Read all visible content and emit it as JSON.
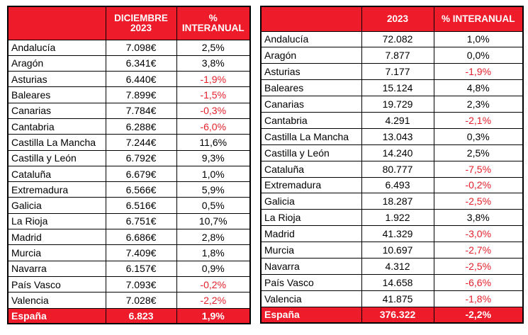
{
  "left_table": {
    "headers": [
      "",
      "DICIEMBRE\n2023",
      "%\nINTERANUAL"
    ],
    "header_value_lines": [
      "DICIEMBRE",
      "2023"
    ],
    "header_pct_lines": [
      "%",
      "INTERANUAL"
    ],
    "rows": [
      {
        "name": "Andalucía",
        "value": "7.098€",
        "pct": "2,5%",
        "neg": false
      },
      {
        "name": "Aragón",
        "value": "6.341€",
        "pct": "3,8%",
        "neg": false
      },
      {
        "name": "Asturias",
        "value": "6.440€",
        "pct": "-1,9%",
        "neg": true
      },
      {
        "name": "Baleares",
        "value": "7.899€",
        "pct": "-1,5%",
        "neg": true
      },
      {
        "name": "Canarias",
        "value": "7.784€",
        "pct": "-0,3%",
        "neg": true
      },
      {
        "name": "Cantabria",
        "value": "6.288€",
        "pct": "-6,0%",
        "neg": true
      },
      {
        "name": "Castilla La Mancha",
        "value": "7.244€",
        "pct": "11,6%",
        "neg": false
      },
      {
        "name": "Castilla y León",
        "value": "6.792€",
        "pct": "9,3%",
        "neg": false
      },
      {
        "name": "Cataluña",
        "value": "6.679€",
        "pct": "1,0%",
        "neg": false
      },
      {
        "name": "Extremadura",
        "value": "6.566€",
        "pct": "5,9%",
        "neg": false
      },
      {
        "name": "Galicia",
        "value": "6.516€",
        "pct": "0,5%",
        "neg": false
      },
      {
        "name": "La Rioja",
        "value": "6.751€",
        "pct": "10,7%",
        "neg": false
      },
      {
        "name": "Madrid",
        "value": "6.686€",
        "pct": "2,8%",
        "neg": false
      },
      {
        "name": "Murcia",
        "value": "7.409€",
        "pct": "1,8%",
        "neg": false
      },
      {
        "name": "Navarra",
        "value": "6.157€",
        "pct": "0,9%",
        "neg": false
      },
      {
        "name": "País Vasco",
        "value": "7.093€",
        "pct": "-0,2%",
        "neg": true
      },
      {
        "name": "Valencia",
        "value": "7.028€",
        "pct": "-2,2%",
        "neg": true
      }
    ],
    "total": {
      "name": "España",
      "value": "6.823",
      "pct": "1,9%"
    }
  },
  "right_table": {
    "header_value": "2023",
    "header_pct": "% INTERANUAL",
    "rows": [
      {
        "name": "Andalucía",
        "value": "72.082",
        "pct": "1,0%",
        "neg": false
      },
      {
        "name": "Aragón",
        "value": "7.877",
        "pct": "0,0%",
        "neg": false
      },
      {
        "name": "Asturias",
        "value": "7.177",
        "pct": "-1,9%",
        "neg": true
      },
      {
        "name": "Baleares",
        "value": "15.124",
        "pct": "4,8%",
        "neg": false
      },
      {
        "name": "Canarias",
        "value": "19.729",
        "pct": "2,3%",
        "neg": false
      },
      {
        "name": "Cantabria",
        "value": "4.291",
        "pct": "-2,1%",
        "neg": true
      },
      {
        "name": "Castilla La Mancha",
        "value": "13.043",
        "pct": "0,3%",
        "neg": false
      },
      {
        "name": "Castilla y León",
        "value": "14.240",
        "pct": "2,5%",
        "neg": false
      },
      {
        "name": "Cataluña",
        "value": "80.777",
        "pct": "-7,5%",
        "neg": true
      },
      {
        "name": "Extremadura",
        "value": "6.493",
        "pct": "-0,2%",
        "neg": true
      },
      {
        "name": "Galicia",
        "value": "18.287",
        "pct": "-2,5%",
        "neg": true
      },
      {
        "name": "La Rioja",
        "value": "1.922",
        "pct": "3,8%",
        "neg": false
      },
      {
        "name": "Madrid",
        "value": "41.329",
        "pct": "-3,0%",
        "neg": true
      },
      {
        "name": "Murcia",
        "value": "10.697",
        "pct": "-2,7%",
        "neg": true
      },
      {
        "name": "Navarra",
        "value": "4.312",
        "pct": "-2,5%",
        "neg": true
      },
      {
        "name": "País Vasco",
        "value": "14.658",
        "pct": "-6,6%",
        "neg": true
      },
      {
        "name": "Valencia",
        "value": "41.875",
        "pct": "-1,8%",
        "neg": true
      }
    ],
    "total": {
      "name": "España",
      "value": "376.322",
      "pct": "-2,2%"
    }
  },
  "colors": {
    "header_red": "#ee1c2b",
    "negative_red": "#e4212b"
  }
}
